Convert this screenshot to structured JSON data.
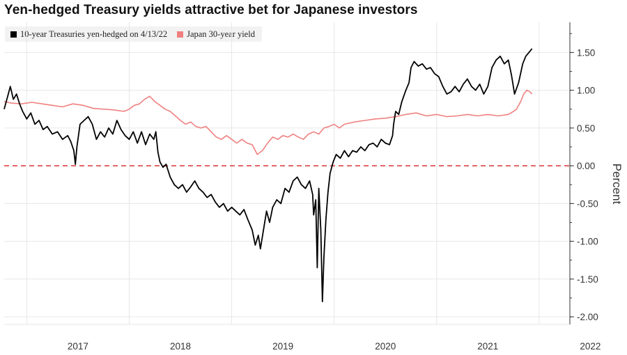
{
  "chart_data": {
    "type": "line",
    "title": "Yen-hedged Treasury yields attractive bet for Japanese investors",
    "ylabel": "Percent",
    "xlabel": "",
    "ylim": [
      -2.1,
      1.9
    ],
    "xlim": [
      2016.78,
      2022.3
    ],
    "grid": true,
    "legend_position": "top-left",
    "x_ticks": [
      {
        "value": 2017.0,
        "label": "2017"
      },
      {
        "value": 2018.0,
        "label": "2018"
      },
      {
        "value": 2019.0,
        "label": "2019"
      },
      {
        "value": 2020.0,
        "label": "2020"
      },
      {
        "value": 2021.0,
        "label": "2021"
      },
      {
        "value": 2022.0,
        "label": "2022"
      }
    ],
    "y_ticks": [
      {
        "value": 1.5,
        "label": "1.50"
      },
      {
        "value": 1.0,
        "label": "1.00"
      },
      {
        "value": 0.5,
        "label": "0.50"
      },
      {
        "value": 0.0,
        "label": "0.00"
      },
      {
        "value": -0.5,
        "label": "-0.50"
      },
      {
        "value": -1.0,
        "label": "-1.00"
      },
      {
        "value": -1.5,
        "label": "-1.50"
      },
      {
        "value": -2.0,
        "label": "-2.00"
      }
    ],
    "reference_line": {
      "value": 0.0,
      "color": "#e04040"
    },
    "series": [
      {
        "name": "10-year Treasuries yen-hedged on 4/13/22",
        "color": "#000000",
        "points": [
          [
            2016.78,
            0.75
          ],
          [
            2016.82,
            0.95
          ],
          [
            2016.84,
            1.05
          ],
          [
            2016.87,
            0.88
          ],
          [
            2016.9,
            0.95
          ],
          [
            2016.93,
            0.82
          ],
          [
            2016.96,
            0.72
          ],
          [
            2017.0,
            0.62
          ],
          [
            2017.04,
            0.7
          ],
          [
            2017.08,
            0.55
          ],
          [
            2017.12,
            0.6
          ],
          [
            2017.16,
            0.48
          ],
          [
            2017.2,
            0.52
          ],
          [
            2017.25,
            0.42
          ],
          [
            2017.3,
            0.45
          ],
          [
            2017.35,
            0.35
          ],
          [
            2017.4,
            0.4
          ],
          [
            2017.43,
            0.32
          ],
          [
            2017.46,
            0.2
          ],
          [
            2017.475,
            0.02
          ],
          [
            2017.49,
            0.25
          ],
          [
            2017.52,
            0.55
          ],
          [
            2017.56,
            0.6
          ],
          [
            2017.6,
            0.65
          ],
          [
            2017.64,
            0.55
          ],
          [
            2017.68,
            0.35
          ],
          [
            2017.72,
            0.45
          ],
          [
            2017.76,
            0.38
          ],
          [
            2017.8,
            0.5
          ],
          [
            2017.84,
            0.42
          ],
          [
            2017.88,
            0.6
          ],
          [
            2017.92,
            0.48
          ],
          [
            2017.96,
            0.4
          ],
          [
            2018.0,
            0.35
          ],
          [
            2018.04,
            0.45
          ],
          [
            2018.08,
            0.3
          ],
          [
            2018.12,
            0.45
          ],
          [
            2018.16,
            0.28
          ],
          [
            2018.2,
            0.42
          ],
          [
            2018.24,
            0.35
          ],
          [
            2018.26,
            0.45
          ],
          [
            2018.28,
            0.18
          ],
          [
            2018.3,
            0.05
          ],
          [
            2018.33,
            -0.02
          ],
          [
            2018.36,
            0.02
          ],
          [
            2018.4,
            -0.15
          ],
          [
            2018.44,
            -0.25
          ],
          [
            2018.48,
            -0.3
          ],
          [
            2018.52,
            -0.25
          ],
          [
            2018.56,
            -0.35
          ],
          [
            2018.6,
            -0.28
          ],
          [
            2018.64,
            -0.2
          ],
          [
            2018.68,
            -0.3
          ],
          [
            2018.72,
            -0.35
          ],
          [
            2018.76,
            -0.42
          ],
          [
            2018.8,
            -0.38
          ],
          [
            2018.84,
            -0.48
          ],
          [
            2018.88,
            -0.55
          ],
          [
            2018.92,
            -0.5
          ],
          [
            2018.96,
            -0.6
          ],
          [
            2019.0,
            -0.55
          ],
          [
            2019.04,
            -0.6
          ],
          [
            2019.08,
            -0.65
          ],
          [
            2019.12,
            -0.58
          ],
          [
            2019.16,
            -0.72
          ],
          [
            2019.2,
            -0.85
          ],
          [
            2019.23,
            -1.05
          ],
          [
            2019.26,
            -0.92
          ],
          [
            2019.28,
            -1.1
          ],
          [
            2019.31,
            -0.85
          ],
          [
            2019.34,
            -0.6
          ],
          [
            2019.37,
            -0.75
          ],
          [
            2019.4,
            -0.55
          ],
          [
            2019.44,
            -0.45
          ],
          [
            2019.48,
            -0.5
          ],
          [
            2019.52,
            -0.3
          ],
          [
            2019.56,
            -0.35
          ],
          [
            2019.6,
            -0.2
          ],
          [
            2019.64,
            -0.15
          ],
          [
            2019.68,
            -0.25
          ],
          [
            2019.72,
            -0.3
          ],
          [
            2019.76,
            -0.2
          ],
          [
            2019.79,
            -0.38
          ],
          [
            2019.8,
            -0.65
          ],
          [
            2019.82,
            -0.45
          ],
          [
            2019.835,
            -1.35
          ],
          [
            2019.85,
            -0.3
          ],
          [
            2019.87,
            -0.85
          ],
          [
            2019.885,
            -1.8
          ],
          [
            2019.9,
            -1.2
          ],
          [
            2019.92,
            -0.7
          ],
          [
            2019.94,
            -0.35
          ],
          [
            2019.96,
            -0.1
          ],
          [
            2019.99,
            0.05
          ],
          [
            2020.02,
            0.15
          ],
          [
            2020.06,
            0.1
          ],
          [
            2020.1,
            0.2
          ],
          [
            2020.14,
            0.12
          ],
          [
            2020.18,
            0.2
          ],
          [
            2020.22,
            0.18
          ],
          [
            2020.26,
            0.25
          ],
          [
            2020.3,
            0.2
          ],
          [
            2020.34,
            0.28
          ],
          [
            2020.38,
            0.3
          ],
          [
            2020.42,
            0.25
          ],
          [
            2020.46,
            0.35
          ],
          [
            2020.5,
            0.3
          ],
          [
            2020.54,
            0.28
          ],
          [
            2020.57,
            0.4
          ],
          [
            2020.58,
            0.55
          ],
          [
            2020.6,
            0.72
          ],
          [
            2020.63,
            0.68
          ],
          [
            2020.66,
            0.85
          ],
          [
            2020.7,
            1.0
          ],
          [
            2020.73,
            1.1
          ],
          [
            2020.75,
            1.3
          ],
          [
            2020.78,
            1.38
          ],
          [
            2020.82,
            1.32
          ],
          [
            2020.86,
            1.35
          ],
          [
            2020.9,
            1.28
          ],
          [
            2020.94,
            1.3
          ],
          [
            2020.98,
            1.22
          ],
          [
            2021.02,
            1.18
          ],
          [
            2021.06,
            1.05
          ],
          [
            2021.1,
            0.95
          ],
          [
            2021.14,
            0.98
          ],
          [
            2021.18,
            1.05
          ],
          [
            2021.22,
            0.98
          ],
          [
            2021.26,
            1.08
          ],
          [
            2021.3,
            1.15
          ],
          [
            2021.34,
            1.05
          ],
          [
            2021.38,
            1.0
          ],
          [
            2021.42,
            1.08
          ],
          [
            2021.46,
            0.95
          ],
          [
            2021.5,
            1.05
          ],
          [
            2021.54,
            1.3
          ],
          [
            2021.58,
            1.4
          ],
          [
            2021.62,
            1.45
          ],
          [
            2021.66,
            1.35
          ],
          [
            2021.7,
            1.4
          ],
          [
            2021.73,
            1.2
          ],
          [
            2021.76,
            0.95
          ],
          [
            2021.8,
            1.1
          ],
          [
            2021.84,
            1.35
          ],
          [
            2021.87,
            1.45
          ],
          [
            2021.9,
            1.5
          ],
          [
            2021.93,
            1.55
          ]
        ]
      },
      {
        "name": "Japan 30-year yield",
        "color": "#f08080",
        "points": [
          [
            2016.78,
            0.85
          ],
          [
            2016.85,
            0.83
          ],
          [
            2016.95,
            0.82
          ],
          [
            2017.05,
            0.84
          ],
          [
            2017.15,
            0.82
          ],
          [
            2017.25,
            0.8
          ],
          [
            2017.35,
            0.78
          ],
          [
            2017.45,
            0.82
          ],
          [
            2017.55,
            0.8
          ],
          [
            2017.65,
            0.76
          ],
          [
            2017.75,
            0.75
          ],
          [
            2017.85,
            0.74
          ],
          [
            2017.95,
            0.72
          ],
          [
            2018.0,
            0.75
          ],
          [
            2018.05,
            0.8
          ],
          [
            2018.1,
            0.82
          ],
          [
            2018.15,
            0.88
          ],
          [
            2018.2,
            0.92
          ],
          [
            2018.25,
            0.85
          ],
          [
            2018.3,
            0.8
          ],
          [
            2018.35,
            0.75
          ],
          [
            2018.4,
            0.72
          ],
          [
            2018.45,
            0.66
          ],
          [
            2018.5,
            0.6
          ],
          [
            2018.55,
            0.55
          ],
          [
            2018.6,
            0.58
          ],
          [
            2018.65,
            0.52
          ],
          [
            2018.7,
            0.5
          ],
          [
            2018.75,
            0.52
          ],
          [
            2018.8,
            0.45
          ],
          [
            2018.85,
            0.38
          ],
          [
            2018.9,
            0.35
          ],
          [
            2018.95,
            0.4
          ],
          [
            2019.0,
            0.35
          ],
          [
            2019.05,
            0.3
          ],
          [
            2019.1,
            0.35
          ],
          [
            2019.15,
            0.3
          ],
          [
            2019.2,
            0.28
          ],
          [
            2019.25,
            0.15
          ],
          [
            2019.3,
            0.2
          ],
          [
            2019.35,
            0.3
          ],
          [
            2019.4,
            0.38
          ],
          [
            2019.45,
            0.35
          ],
          [
            2019.5,
            0.4
          ],
          [
            2019.55,
            0.38
          ],
          [
            2019.6,
            0.42
          ],
          [
            2019.65,
            0.38
          ],
          [
            2019.7,
            0.35
          ],
          [
            2019.75,
            0.42
          ],
          [
            2019.8,
            0.45
          ],
          [
            2019.85,
            0.42
          ],
          [
            2019.9,
            0.5
          ],
          [
            2019.95,
            0.52
          ],
          [
            2020.0,
            0.55
          ],
          [
            2020.05,
            0.5
          ],
          [
            2020.1,
            0.55
          ],
          [
            2020.2,
            0.58
          ],
          [
            2020.3,
            0.6
          ],
          [
            2020.4,
            0.62
          ],
          [
            2020.5,
            0.63
          ],
          [
            2020.6,
            0.65
          ],
          [
            2020.7,
            0.68
          ],
          [
            2020.8,
            0.7
          ],
          [
            2020.9,
            0.66
          ],
          [
            2021.0,
            0.68
          ],
          [
            2021.1,
            0.65
          ],
          [
            2021.2,
            0.66
          ],
          [
            2021.3,
            0.68
          ],
          [
            2021.4,
            0.66
          ],
          [
            2021.5,
            0.68
          ],
          [
            2021.6,
            0.66
          ],
          [
            2021.7,
            0.68
          ],
          [
            2021.75,
            0.72
          ],
          [
            2021.78,
            0.75
          ],
          [
            2021.82,
            0.85
          ],
          [
            2021.85,
            0.95
          ],
          [
            2021.88,
            1.0
          ],
          [
            2021.91,
            0.98
          ],
          [
            2021.93,
            0.95
          ]
        ]
      }
    ]
  }
}
